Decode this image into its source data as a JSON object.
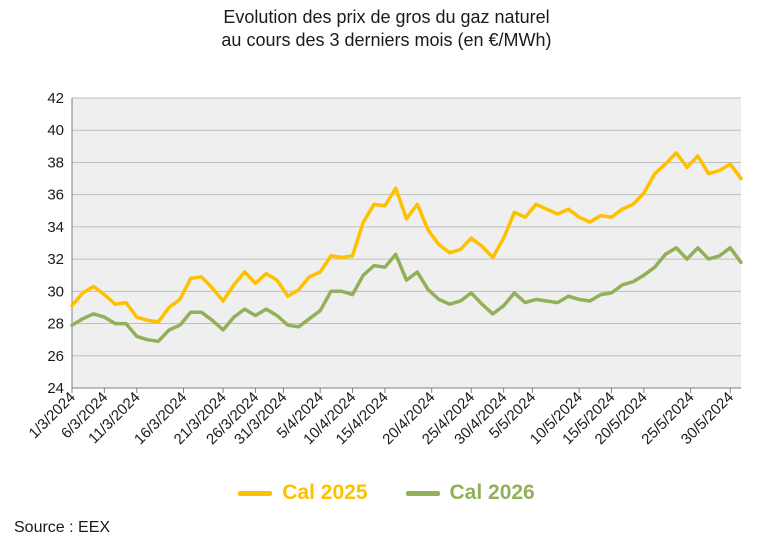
{
  "title_line1": "Evolution des prix de gros du gaz naturel",
  "title_line2": "au cours des 3 derniers mois (en €/MWh)",
  "source": "Source : EEX",
  "colors": {
    "cal2025": "#FFC000",
    "cal2026": "#92B05A",
    "plot_bg": "#EFEFEF",
    "grid": "#BFBFBF"
  },
  "chart_data": {
    "type": "line",
    "title": "Evolution des prix de gros du gaz naturel au cours des 3 derniers mois (en €/MWh)",
    "xlabel": "",
    "ylabel": "",
    "ylim": [
      24,
      42
    ],
    "yticks": [
      24,
      26,
      28,
      30,
      32,
      34,
      36,
      38,
      40,
      42
    ],
    "grid": true,
    "legend": "bottom",
    "x": [
      "1/3/2024",
      "4/3/2024",
      "5/3/2024",
      "6/3/2024",
      "7/3/2024",
      "8/3/2024",
      "11/3/2024",
      "12/3/2024",
      "13/3/2024",
      "14/3/2024",
      "15/3/2024",
      "18/3/2024",
      "19/3/2024",
      "20/3/2024",
      "21/3/2024",
      "22/3/2024",
      "25/3/2024",
      "26/3/2024",
      "27/3/2024",
      "28/3/2024",
      "2/4/2024",
      "3/4/2024",
      "4/4/2024",
      "5/4/2024",
      "8/4/2024",
      "9/4/2024",
      "10/4/2024",
      "11/4/2024",
      "12/4/2024",
      "15/4/2024",
      "16/4/2024",
      "17/4/2024",
      "18/4/2024",
      "19/4/2024",
      "22/4/2024",
      "23/4/2024",
      "24/4/2024",
      "25/4/2024",
      "26/4/2024",
      "29/4/2024",
      "30/4/2024",
      "2/5/2024",
      "3/5/2024",
      "6/5/2024",
      "7/5/2024",
      "8/5/2024",
      "9/5/2024",
      "10/5/2024",
      "13/5/2024",
      "14/5/2024",
      "15/5/2024",
      "16/5/2024",
      "17/5/2024",
      "20/5/2024",
      "21/5/2024",
      "22/5/2024",
      "23/5/2024",
      "24/5/2024",
      "27/5/2024",
      "28/5/2024",
      "29/5/2024",
      "30/5/2024",
      "31/5/2024"
    ],
    "tick_labels": [
      "1/3/2024",
      "6/3/2024",
      "11/3/2024",
      "16/3/2024",
      "21/3/2024",
      "26/3/2024",
      "31/3/2024",
      "5/4/2024",
      "10/4/2024",
      "15/4/2024",
      "20/4/2024",
      "25/4/2024",
      "30/4/2024",
      "5/5/2024",
      "10/5/2024",
      "15/5/2024",
      "20/5/2024",
      "25/5/2024",
      "30/5/2024"
    ],
    "series": [
      {
        "name": "Cal 2025",
        "color": "#FFC000",
        "values": [
          29.1,
          29.9,
          30.3,
          29.8,
          29.2,
          29.3,
          28.4,
          28.2,
          28.1,
          29.0,
          29.5,
          30.8,
          30.9,
          30.2,
          29.4,
          30.4,
          31.2,
          30.5,
          31.1,
          30.7,
          29.7,
          30.1,
          30.9,
          31.2,
          32.2,
          32.1,
          32.2,
          34.3,
          35.4,
          35.3,
          36.4,
          34.5,
          35.4,
          33.8,
          32.9,
          32.4,
          32.6,
          33.3,
          32.8,
          32.1,
          33.3,
          34.9,
          34.6,
          35.4,
          35.1,
          34.8,
          35.1,
          34.6,
          34.3,
          34.7,
          34.6,
          35.1,
          35.4,
          36.1,
          37.3,
          37.9,
          38.6,
          37.7,
          38.4,
          37.3,
          37.5,
          37.9,
          37.0
        ]
      },
      {
        "name": "Cal 2026",
        "color": "#92B05A",
        "values": [
          27.9,
          28.3,
          28.6,
          28.4,
          28.0,
          28.0,
          27.2,
          27.0,
          26.9,
          27.6,
          27.9,
          28.7,
          28.7,
          28.2,
          27.6,
          28.4,
          28.9,
          28.5,
          28.9,
          28.5,
          27.9,
          27.8,
          28.3,
          28.8,
          30.0,
          30.0,
          29.8,
          31.0,
          31.6,
          31.5,
          32.3,
          30.7,
          31.2,
          30.1,
          29.5,
          29.2,
          29.4,
          29.9,
          29.2,
          28.6,
          29.1,
          29.9,
          29.3,
          29.5,
          29.4,
          29.3,
          29.7,
          29.5,
          29.4,
          29.8,
          29.9,
          30.4,
          30.6,
          31.0,
          31.5,
          32.3,
          32.7,
          32.0,
          32.7,
          32.0,
          32.2,
          32.7,
          31.8
        ]
      }
    ]
  }
}
